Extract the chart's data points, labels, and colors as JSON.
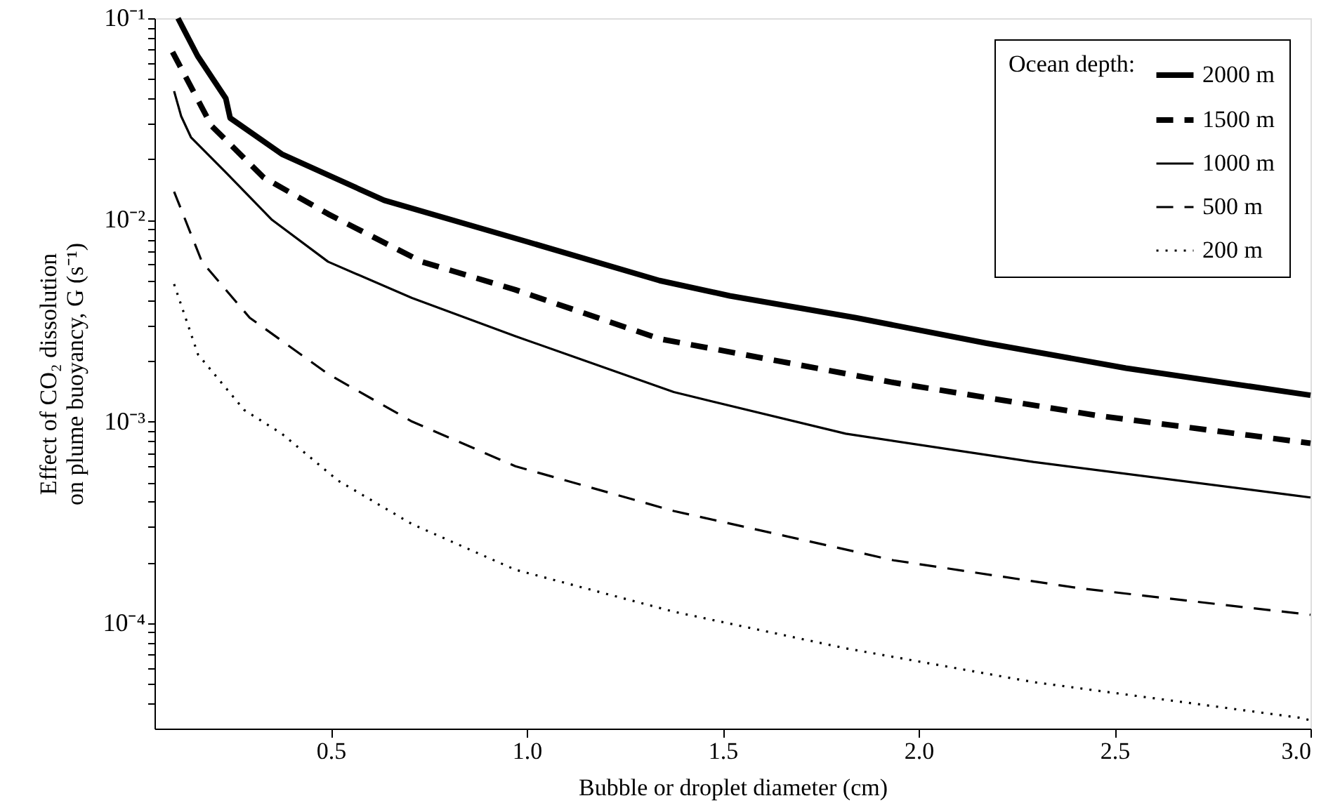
{
  "chart_data": {
    "type": "line",
    "xlabel": "Bubble or droplet diameter (cm)",
    "ylabel": "Effect of CO₂ dissolution\non plume buoyancy, G (s⁻¹)",
    "legend_title": "Ocean depth:",
    "legend": "top right",
    "log": "y",
    "grid": false,
    "marker": "none",
    "xlim": [
      0.05,
      3.0
    ],
    "ylim": [
      3e-05,
      0.1
    ],
    "xticks": [
      {
        "value": 0.5,
        "label": "0.5"
      },
      {
        "value": 1,
        "label": "1.0"
      },
      {
        "value": 1.5,
        "label": "1.5"
      },
      {
        "value": 2,
        "label": "2.0"
      },
      {
        "value": 2.5,
        "label": "2.5"
      },
      {
        "value": 3,
        "label": "3.0"
      }
    ],
    "yticks": [
      {
        "value": 4e-05,
        "label": null
      },
      {
        "value": 5e-05,
        "label": null
      },
      {
        "value": 6e-05,
        "label": null
      },
      {
        "value": 7e-05,
        "label": null
      },
      {
        "value": 8e-05,
        "label": null
      },
      {
        "value": 9e-05,
        "label": null
      },
      {
        "value": 0.0001,
        "label": "10⁻⁴"
      },
      {
        "value": 0.0002,
        "label": null
      },
      {
        "value": 0.0003,
        "label": null
      },
      {
        "value": 0.0004,
        "label": null
      },
      {
        "value": 0.0005,
        "label": null
      },
      {
        "value": 0.0006,
        "label": null
      },
      {
        "value": 0.0007,
        "label": null
      },
      {
        "value": 0.0008,
        "label": null
      },
      {
        "value": 0.0009,
        "label": null
      },
      {
        "value": 0.001,
        "label": "10⁻³"
      },
      {
        "value": 0.002,
        "label": null
      },
      {
        "value": 0.003,
        "label": null
      },
      {
        "value": 0.004,
        "label": null
      },
      {
        "value": 0.005,
        "label": null
      },
      {
        "value": 0.006,
        "label": null
      },
      {
        "value": 0.007,
        "label": null
      },
      {
        "value": 0.008,
        "label": null
      },
      {
        "value": 0.009,
        "label": null
      },
      {
        "value": 0.01,
        "label": "10⁻²"
      },
      {
        "value": 0.02,
        "label": null
      },
      {
        "value": 0.03,
        "label": null
      },
      {
        "value": 0.04,
        "label": null
      },
      {
        "value": 0.05,
        "label": null
      },
      {
        "value": 0.06,
        "label": null
      },
      {
        "value": 0.07,
        "label": null
      },
      {
        "value": 0.08,
        "label": null
      },
      {
        "value": 0.09,
        "label": null
      },
      {
        "value": 0.1,
        "label": "10⁻¹"
      }
    ],
    "series": [
      {
        "name": "2000 m",
        "color": "#000000",
        "line_style": "solid",
        "x": [
          0.11,
          0.16,
          0.232,
          0.243,
          0.375,
          0.636,
          1.0,
          1.339,
          1.518,
          1.84,
          2.171,
          2.529,
          3.0
        ],
        "values": [
          0.1,
          0.065,
          0.04,
          0.032,
          0.0212,
          0.0125,
          0.0078,
          0.005,
          0.0042,
          0.00327,
          0.00245,
          0.00184,
          0.00135
        ]
      },
      {
        "name": "1500 m",
        "color": "#000000",
        "line_style": "dashed",
        "x": [
          0.096,
          0.196,
          0.329,
          0.493,
          0.732,
          0.971,
          1.339,
          1.936,
          2.457,
          3.0
        ],
        "values": [
          0.068,
          0.0292,
          0.0162,
          0.0107,
          0.0062,
          0.0045,
          0.00257,
          0.00156,
          0.00107,
          0.00078
        ]
      },
      {
        "name": "1000 m",
        "color": "#000000",
        "line_style": "solid",
        "x": [
          0.1,
          0.118,
          0.143,
          0.232,
          0.35,
          0.493,
          0.707,
          0.971,
          1.375,
          1.814,
          2.293,
          2.96,
          3.0
        ],
        "values": [
          0.0435,
          0.0327,
          0.0257,
          0.0172,
          0.01,
          0.0062,
          0.0041,
          0.00265,
          0.0014,
          0.00087,
          0.00063,
          0.00043,
          0.00042
        ]
      },
      {
        "name": "500 m",
        "color": "#000000",
        "line_style": "dashed",
        "x": [
          0.1,
          0.171,
          0.293,
          0.493,
          0.707,
          0.971,
          1.375,
          1.936,
          2.41,
          3.0
        ],
        "values": [
          0.0138,
          0.0062,
          0.00327,
          0.00172,
          0.001,
          0.0006,
          0.00036,
          0.000205,
          0.000149,
          0.00011
        ]
      },
      {
        "name": "200 m",
        "color": "#000000",
        "line_style": "dotted",
        "x": [
          0.1,
          0.161,
          0.279,
          0.375,
          0.518,
          0.707,
          0.971,
          1.375,
          1.814,
          2.293,
          2.97,
          3.0
        ],
        "values": [
          0.0048,
          0.00215,
          0.00114,
          0.00087,
          0.00051,
          0.00031,
          0.000184,
          0.000114,
          7.5e-05,
          5.1e-05,
          3.4e-05,
          3.3e-05
        ]
      }
    ]
  }
}
